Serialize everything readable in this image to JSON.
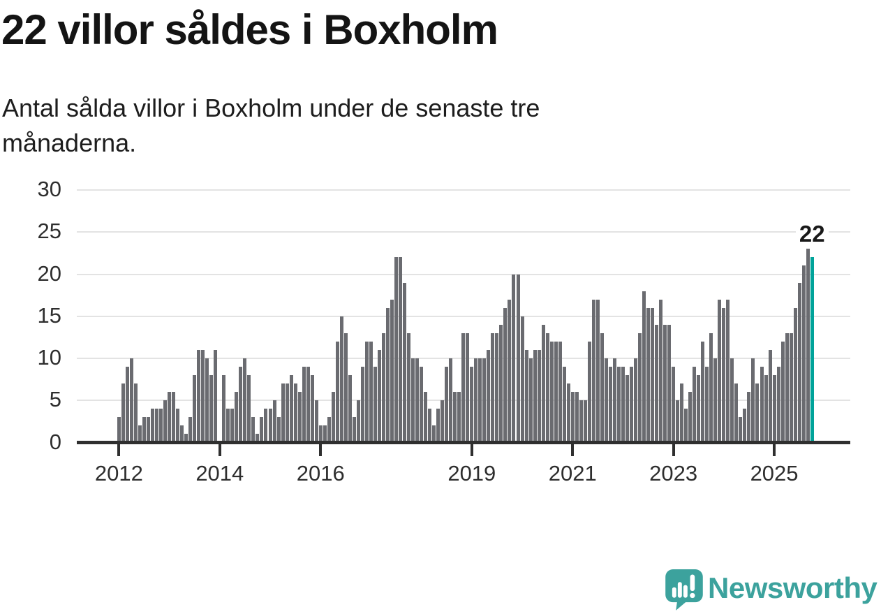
{
  "header": {
    "title": "22 villor såldes i Boxholm",
    "subtitle_line1": "Antal sålda villor i Boxholm under de senaste tre",
    "subtitle_line2": "månaderna."
  },
  "chart_data": {
    "type": "bar",
    "title": "22 villor såldes i Boxholm",
    "xlabel": "",
    "ylabel": "",
    "x_start": "2012-01",
    "frequency": "monthly",
    "values": [
      3,
      7,
      9,
      10,
      7,
      2,
      3,
      3,
      4,
      4,
      4,
      5,
      6,
      6,
      4,
      2,
      1,
      3,
      8,
      11,
      11,
      10,
      8,
      11,
      0,
      8,
      4,
      4,
      6,
      9,
      10,
      8,
      3,
      1,
      3,
      4,
      4,
      5,
      3,
      7,
      7,
      8,
      7,
      6,
      9,
      9,
      8,
      5,
      2,
      2,
      3,
      6,
      12,
      15,
      13,
      8,
      3,
      5,
      9,
      12,
      12,
      9,
      11,
      13,
      16,
      17,
      22,
      22,
      19,
      13,
      10,
      10,
      9,
      6,
      4,
      2,
      4,
      5,
      9,
      10,
      6,
      6,
      13,
      13,
      9,
      10,
      10,
      10,
      11,
      13,
      13,
      14,
      16,
      17,
      20,
      20,
      15,
      11,
      10,
      11,
      11,
      14,
      13,
      12,
      12,
      12,
      9,
      7,
      6,
      6,
      5,
      5,
      12,
      17,
      17,
      13,
      10,
      9,
      10,
      9,
      9,
      8,
      9,
      10,
      13,
      18,
      16,
      16,
      14,
      17,
      14,
      14,
      9,
      5,
      7,
      4,
      6,
      9,
      8,
      12,
      9,
      13,
      10,
      17,
      16,
      17,
      10,
      7,
      3,
      4,
      6,
      10,
      7,
      9,
      8,
      11,
      8,
      9,
      12,
      13,
      13,
      16,
      19,
      21,
      23,
      22
    ],
    "highlight_index": 165,
    "highlight_value": 22,
    "annotation_label": "22",
    "yticks": [
      "0",
      "5",
      "10",
      "15",
      "20",
      "25",
      "30"
    ],
    "ylim": [
      0,
      30
    ],
    "xticks": [
      "2012",
      "2014",
      "2016",
      "2019",
      "2021",
      "2023",
      "2025"
    ],
    "grid": true,
    "legend_position": "none",
    "bar_color": "#6a6b70",
    "highlight_color": "#00a39a",
    "gridline_color": "#e3e3e3",
    "axis_color": "#2f2f2f"
  },
  "footer": {
    "brand": "Newsworthy",
    "brand_color": "#3ca29d"
  }
}
